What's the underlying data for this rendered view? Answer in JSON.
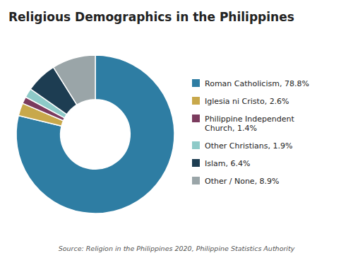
{
  "chart_data": {
    "type": "donut",
    "title": "Religious Demographics in the Philippines",
    "source": "Source: Religion in the Philippines 2020, Philippine Statistics Authority",
    "categories": [
      "Roman Catholicism, 78.8%",
      "Iglesia ni Cristo, 2.6%",
      "Philippine Independent\nChurch, 1.4%",
      "Other Christians, 1.9%",
      "Islam, 6.4%",
      "Other / None, 8.9%"
    ],
    "values": [
      78.8,
      2.6,
      1.4,
      1.9,
      6.4,
      8.9
    ],
    "colors": [
      "#2e7da3",
      "#c8a84b",
      "#7b3b5e",
      "#8ecac8",
      "#1d3d52",
      "#9aa5a8"
    ],
    "legend": "right"
  }
}
